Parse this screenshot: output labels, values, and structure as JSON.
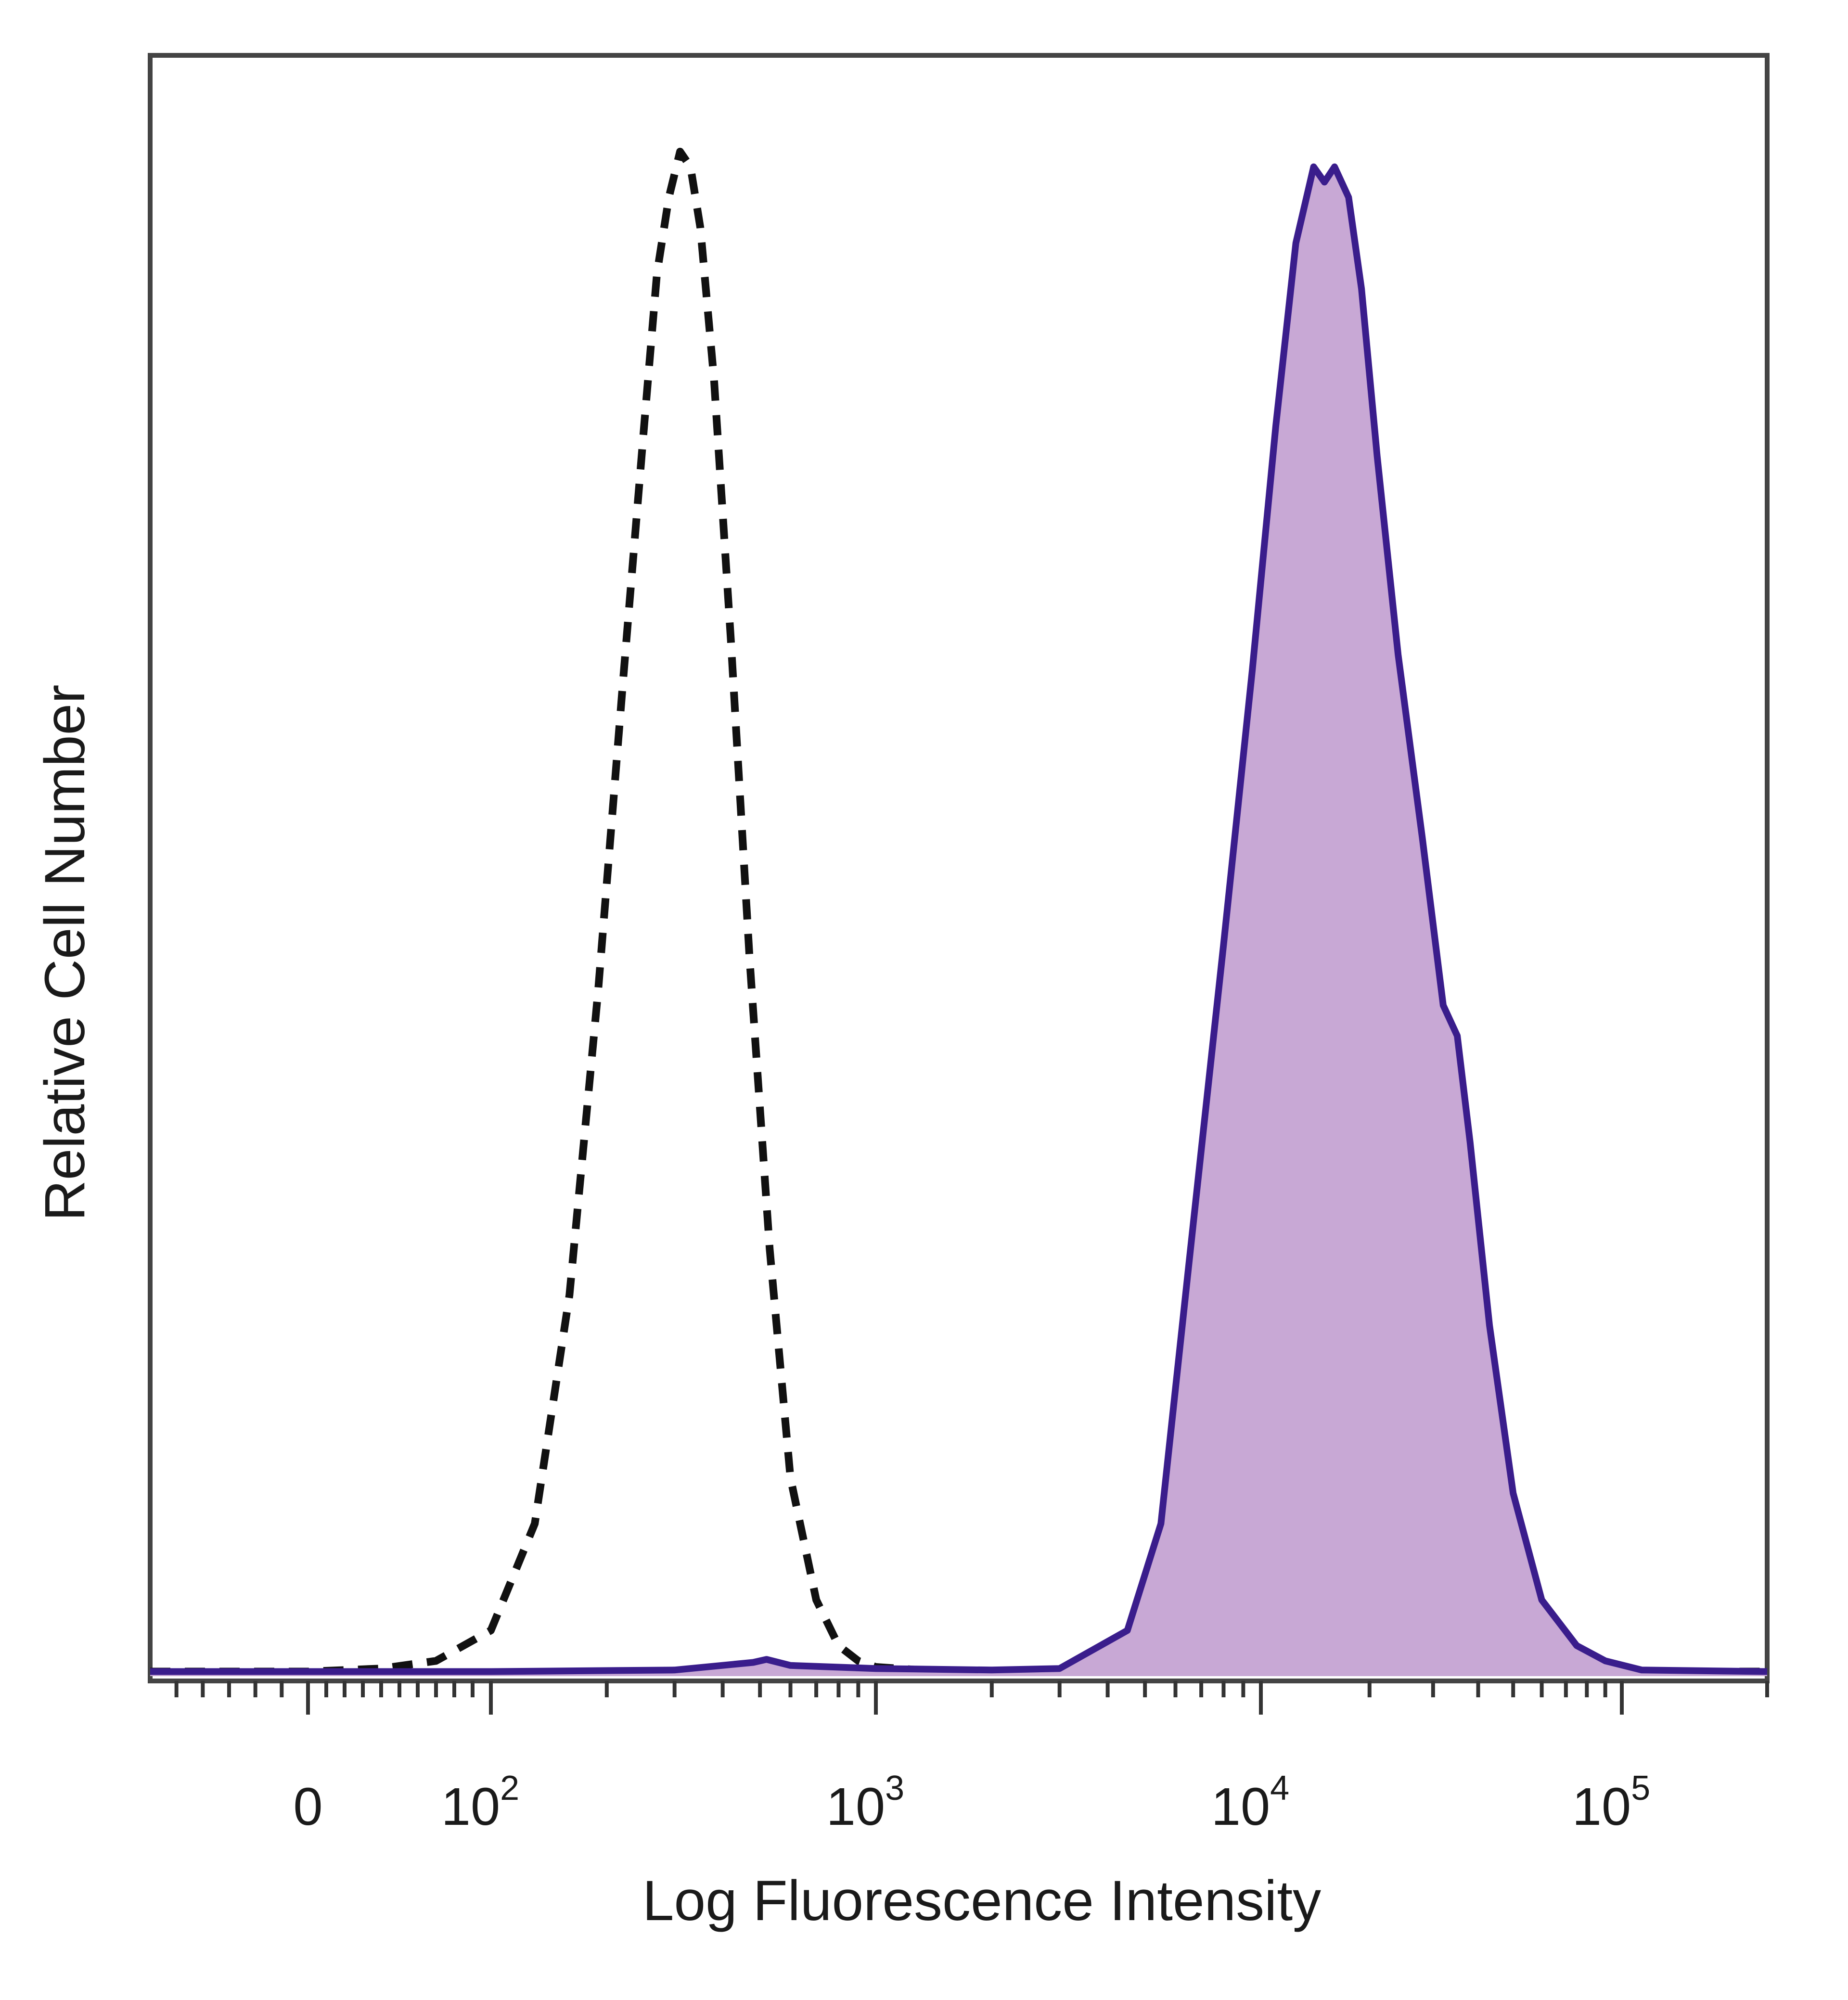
{
  "chart_data": {
    "type": "area",
    "xlabel": "Log Fluorescence Intensity",
    "ylabel": "Relative Cell Number",
    "x_scale": "biexponential",
    "xlim": [
      -60,
      200000
    ],
    "ylim": [
      0,
      100
    ],
    "grid": false,
    "legend": "none",
    "x_ticks": [
      {
        "value": 0,
        "base": "0",
        "exp": ""
      },
      {
        "value": 100,
        "base": "10",
        "exp": "2"
      },
      {
        "value": 1000,
        "base": "10",
        "exp": "3"
      },
      {
        "value": 10000,
        "base": "10",
        "exp": "4"
      },
      {
        "value": 100000,
        "base": "10",
        "exp": "5"
      }
    ],
    "series": [
      {
        "style": "dashed",
        "color": "#111111",
        "fill": "none",
        "x": [
          -60,
          0,
          40,
          70,
          100,
          130,
          160,
          190,
          220,
          250,
          270,
          290,
          310,
          330,
          350,
          380,
          420,
          470,
          530,
          600,
          700,
          800,
          900,
          1000,
          1300,
          2000,
          3500,
          5000,
          8000,
          12000,
          20000,
          40000,
          80000,
          120000,
          200000
        ],
        "y": [
          0.3,
          0.3,
          0.5,
          1,
          3,
          10,
          25,
          45,
          65,
          82,
          92,
          97,
          100,
          99,
          95,
          85,
          68,
          47,
          28,
          13,
          5,
          2,
          1,
          0.6,
          0.4,
          0.3,
          0.3,
          0.3,
          0.3,
          0.3,
          0.3,
          0.3,
          0.3,
          0.3,
          0.3
        ]
      },
      {
        "style": "solid",
        "color": "#3a1d8c",
        "fill": "#c8a8d5",
        "x": [
          -60,
          0,
          100,
          300,
          480,
          520,
          600,
          1000,
          2000,
          3000,
          4500,
          5500,
          6500,
          8000,
          9500,
          11000,
          12500,
          14000,
          15000,
          16000,
          17500,
          19000,
          21000,
          24000,
          28000,
          32000,
          35000,
          38000,
          43000,
          50000,
          60000,
          75000,
          90000,
          110000,
          200000
        ],
        "y": [
          0.3,
          0.3,
          0.3,
          0.4,
          0.9,
          1.1,
          0.7,
          0.5,
          0.4,
          0.5,
          3,
          10,
          27,
          48,
          66,
          82,
          94,
          99,
          98,
          99,
          97,
          91,
          80,
          67,
          55,
          44,
          42,
          35,
          23,
          12,
          5,
          2,
          1,
          0.4,
          0.3
        ]
      }
    ]
  }
}
